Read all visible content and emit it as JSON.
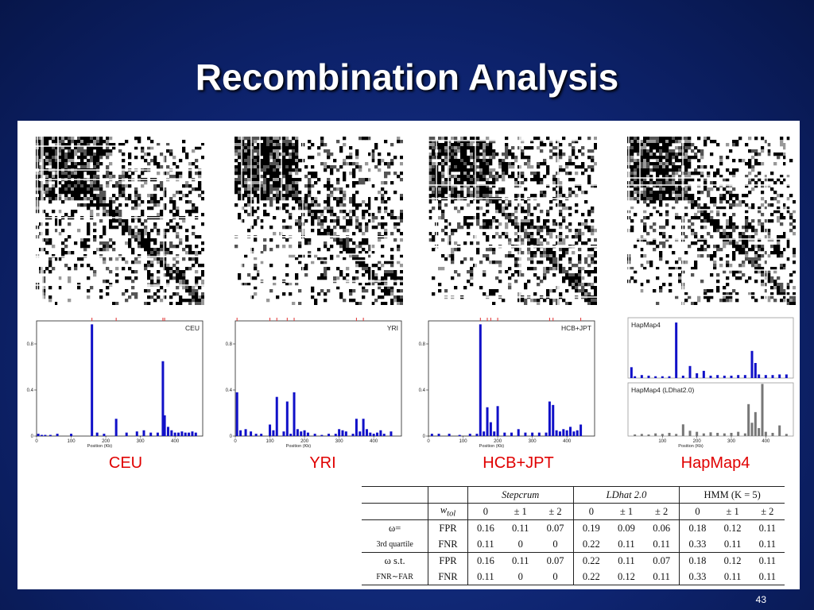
{
  "slide": {
    "title": "Recombination Analysis",
    "page_number": "43"
  },
  "captions": [
    "CEU",
    "YRI",
    "HCB+JPT",
    "HapMap4"
  ],
  "chart_data": [
    {
      "type": "bar",
      "title": "CEU",
      "xlabel": "Position (Kb)",
      "x_ticks": [
        "0",
        "100",
        "200",
        "300",
        "400"
      ],
      "y_ticks": [
        "0",
        "0.4",
        "0.8"
      ],
      "xlim": [
        0,
        480
      ],
      "ylim": [
        0,
        1.0
      ],
      "x": [
        5,
        15,
        25,
        40,
        60,
        100,
        160,
        175,
        195,
        230,
        260,
        290,
        310,
        330,
        350,
        365,
        370,
        380,
        390,
        400,
        410,
        420,
        430,
        440,
        450,
        460
      ],
      "values": [
        0.02,
        0.01,
        0.01,
        0.01,
        0.02,
        0.02,
        0.97,
        0.03,
        0.02,
        0.15,
        0.03,
        0.04,
        0.05,
        0.03,
        0.03,
        0.65,
        0.18,
        0.08,
        0.05,
        0.03,
        0.03,
        0.04,
        0.03,
        0.03,
        0.04,
        0.03
      ]
    },
    {
      "type": "bar",
      "title": "YRI",
      "xlabel": "Position (Kb)",
      "x_ticks": [
        "0",
        "100",
        "200",
        "300",
        "400"
      ],
      "y_ticks": [
        "0",
        "0.4",
        "0.8"
      ],
      "xlim": [
        0,
        480
      ],
      "ylim": [
        0,
        1.0
      ],
      "x": [
        5,
        15,
        30,
        45,
        60,
        75,
        100,
        110,
        120,
        140,
        150,
        160,
        170,
        180,
        190,
        200,
        210,
        230,
        250,
        270,
        290,
        300,
        310,
        320,
        340,
        350,
        360,
        370,
        380,
        390,
        400,
        410,
        420,
        430,
        450
      ],
      "values": [
        0.38,
        0.05,
        0.06,
        0.04,
        0.02,
        0.02,
        0.1,
        0.05,
        0.34,
        0.04,
        0.3,
        0.02,
        0.38,
        0.06,
        0.04,
        0.05,
        0.03,
        0.02,
        0.01,
        0.02,
        0.02,
        0.06,
        0.05,
        0.04,
        0.02,
        0.15,
        0.04,
        0.15,
        0.06,
        0.03,
        0.02,
        0.03,
        0.05,
        0.02,
        0.04
      ]
    },
    {
      "type": "bar",
      "title": "HCB+JPT",
      "xlabel": "Position (Kb)",
      "x_ticks": [
        "0",
        "100",
        "200",
        "300",
        "400"
      ],
      "y_ticks": [
        "0",
        "0.4",
        "0.8"
      ],
      "xlim": [
        0,
        480
      ],
      "ylim": [
        0,
        1.0
      ],
      "x": [
        10,
        30,
        60,
        90,
        120,
        140,
        150,
        160,
        170,
        180,
        190,
        200,
        220,
        240,
        260,
        280,
        300,
        320,
        340,
        350,
        360,
        370,
        380,
        390,
        400,
        410,
        420,
        430,
        440
      ],
      "values": [
        0.02,
        0.02,
        0.02,
        0.01,
        0.02,
        0.02,
        0.97,
        0.04,
        0.25,
        0.12,
        0.04,
        0.26,
        0.03,
        0.03,
        0.06,
        0.03,
        0.03,
        0.03,
        0.03,
        0.3,
        0.27,
        0.05,
        0.04,
        0.06,
        0.05,
        0.08,
        0.04,
        0.05,
        0.1
      ]
    },
    {
      "type": "bar",
      "title": "HapMap4",
      "xlim": [
        0,
        480
      ],
      "ylim": [
        0,
        1.0
      ],
      "x": [
        10,
        20,
        40,
        60,
        80,
        100,
        120,
        140,
        160,
        180,
        200,
        220,
        240,
        260,
        280,
        300,
        320,
        340,
        360,
        370,
        380,
        400,
        420,
        440,
        460
      ],
      "values": [
        0.18,
        0.03,
        0.05,
        0.04,
        0.03,
        0.03,
        0.03,
        0.92,
        0.04,
        0.2,
        0.08,
        0.12,
        0.04,
        0.05,
        0.04,
        0.04,
        0.05,
        0.05,
        0.45,
        0.25,
        0.06,
        0.05,
        0.05,
        0.06,
        0.06
      ]
    },
    {
      "type": "bar",
      "title": "HapMap4 (LDhat2.0)",
      "xlabel": "Position (Kb)",
      "x_ticks": [
        "100",
        "200",
        "300",
        "400"
      ],
      "xlim": [
        0,
        480
      ],
      "ylim": [
        0,
        1.0
      ],
      "x": [
        20,
        40,
        60,
        80,
        100,
        120,
        140,
        160,
        180,
        200,
        220,
        240,
        260,
        280,
        300,
        320,
        340,
        350,
        360,
        370,
        380,
        390,
        400,
        420,
        440,
        460
      ],
      "values": [
        0.03,
        0.04,
        0.03,
        0.05,
        0.04,
        0.06,
        0.04,
        0.22,
        0.1,
        0.08,
        0.05,
        0.07,
        0.06,
        0.05,
        0.06,
        0.08,
        0.05,
        0.6,
        0.25,
        0.45,
        0.15,
        0.98,
        0.08,
        0.06,
        0.2,
        0.04
      ]
    }
  ],
  "table": {
    "groups": [
      "Stepcrum",
      "LDhat 2.0",
      "HMM (K = 5)"
    ],
    "w_label": "w",
    "w_subscript": "tol",
    "col_headers": [
      "0",
      "± 1",
      "± 2",
      "0",
      "± 1",
      "± 2",
      "0",
      "± 1",
      "± 2"
    ],
    "rows": [
      {
        "label1": "ω=",
        "label2": "3rd quartile",
        "sub": [
          {
            "metric": "FPR",
            "values": [
              "0.16",
              "0.11",
              "0.07",
              "0.19",
              "0.09",
              "0.06",
              "0.18",
              "0.12",
              "0.11"
            ]
          },
          {
            "metric": "FNR",
            "values": [
              "0.11",
              "0",
              "0",
              "0.22",
              "0.11",
              "0.11",
              "0.33",
              "0.11",
              "0.11"
            ]
          }
        ]
      },
      {
        "label1": "ω s.t.",
        "label2": "FNR∼FAR",
        "sub": [
          {
            "metric": "FPR",
            "values": [
              "0.16",
              "0.11",
              "0.07",
              "0.22",
              "0.11",
              "0.07",
              "0.18",
              "0.12",
              "0.11"
            ]
          },
          {
            "metric": "FNR",
            "values": [
              "0.11",
              "0",
              "0",
              "0.22",
              "0.12",
              "0.11",
              "0.33",
              "0.11",
              "0.11"
            ]
          }
        ]
      }
    ]
  },
  "colors": {
    "bars": "#1010c8",
    "ldhat_bars": "#777777",
    "caption": "#e00000",
    "ticks_top": "#e03030"
  }
}
